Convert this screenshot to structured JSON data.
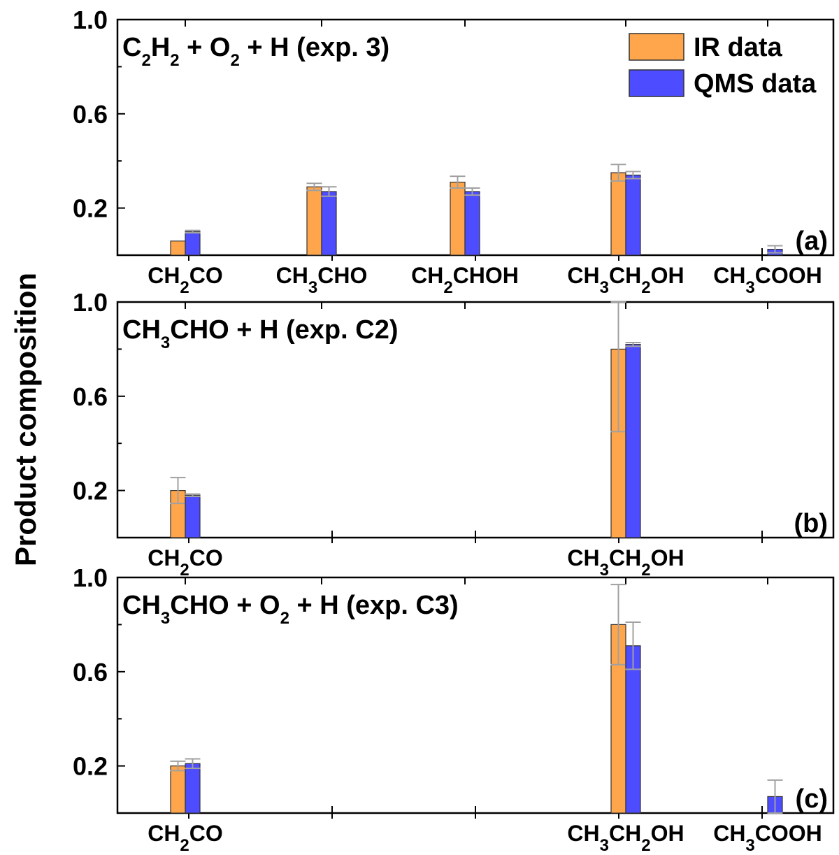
{
  "chart_data": {
    "type": "bar",
    "ylabel": "Product composition",
    "legend": {
      "placement": "top-right",
      "entries": [
        {
          "name": "IR data",
          "color": "#ffa64d"
        },
        {
          "name": "QMS data",
          "color": "#4d4dff"
        }
      ]
    },
    "colors": {
      "ir": "#ffa64d",
      "qms": "#4d4dff",
      "errorbar": "#a0a0a0",
      "axis": "#000000"
    },
    "ylim": [
      0.0,
      1.0
    ],
    "yticks": [
      "1.0",
      "0.6",
      "0.2"
    ],
    "categories": [
      {
        "parts": [
          [
            "CH",
            ""
          ],
          [
            "2",
            "sub"
          ],
          [
            "CO",
            ""
          ]
        ]
      },
      {
        "parts": [
          [
            "CH",
            ""
          ],
          [
            "3",
            "sub"
          ],
          [
            "CHO",
            ""
          ]
        ]
      },
      {
        "parts": [
          [
            "CH",
            ""
          ],
          [
            "2",
            "sub"
          ],
          [
            "CHOH",
            ""
          ]
        ]
      },
      {
        "parts": [
          [
            "CH",
            ""
          ],
          [
            "3",
            "sub"
          ],
          [
            "CH",
            ""
          ],
          [
            "2",
            "sub"
          ],
          [
            "OH",
            ""
          ]
        ]
      },
      {
        "parts": [
          [
            "CH",
            ""
          ],
          [
            "3",
            "sub"
          ],
          [
            "COOH",
            ""
          ]
        ]
      }
    ],
    "panels": [
      {
        "id": "a",
        "panel_label": "(a)",
        "title_parts": [
          [
            "C",
            ""
          ],
          [
            "2",
            "sub"
          ],
          [
            "H",
            ""
          ],
          [
            "2",
            "sub"
          ],
          [
            " + O",
            ""
          ],
          [
            "2",
            "sub"
          ],
          [
            " + H (exp. 3)",
            ""
          ]
        ],
        "shown_categories": [
          0,
          1,
          2,
          3,
          4
        ],
        "series": [
          {
            "name": "IR data",
            "key": "ir",
            "values": [
              0.06,
              0.29,
              0.31,
              0.35,
              null
            ],
            "errors": [
              null,
              0.015,
              0.025,
              0.035,
              null
            ]
          },
          {
            "name": "QMS data",
            "key": "qms",
            "values": [
              0.1,
              0.27,
              0.27,
              0.34,
              0.025
            ],
            "errors": [
              0.005,
              0.02,
              0.015,
              0.015,
              0.015
            ]
          }
        ]
      },
      {
        "id": "b",
        "panel_label": "(b)",
        "title_parts": [
          [
            "CH",
            ""
          ],
          [
            "3",
            "sub"
          ],
          [
            "CHO + H (exp. C2)",
            ""
          ]
        ],
        "shown_categories": [
          0,
          3
        ],
        "series": [
          {
            "name": "IR data",
            "key": "ir",
            "values": [
              0.2,
              null,
              null,
              0.8,
              null
            ],
            "errors": [
              0.055,
              null,
              null,
              0.35,
              null
            ]
          },
          {
            "name": "QMS data",
            "key": "qms",
            "values": [
              0.18,
              null,
              null,
              0.82,
              null
            ],
            "errors": [
              0.005,
              null,
              null,
              0.008,
              null
            ]
          }
        ]
      },
      {
        "id": "c",
        "panel_label": "(c)",
        "title_parts": [
          [
            "CH",
            ""
          ],
          [
            "3",
            "sub"
          ],
          [
            "CHO + O",
            ""
          ],
          [
            "2",
            "sub"
          ],
          [
            " + H (exp. C3)",
            ""
          ]
        ],
        "shown_categories": [
          0,
          3,
          4
        ],
        "series": [
          {
            "name": "IR data",
            "key": "ir",
            "values": [
              0.2,
              null,
              null,
              0.8,
              null
            ],
            "errors": [
              0.02,
              null,
              null,
              0.17,
              null
            ]
          },
          {
            "name": "QMS data",
            "key": "qms",
            "values": [
              0.21,
              null,
              null,
              0.71,
              0.07
            ],
            "errors": [
              0.02,
              null,
              null,
              0.1,
              0.07
            ]
          }
        ]
      }
    ]
  }
}
